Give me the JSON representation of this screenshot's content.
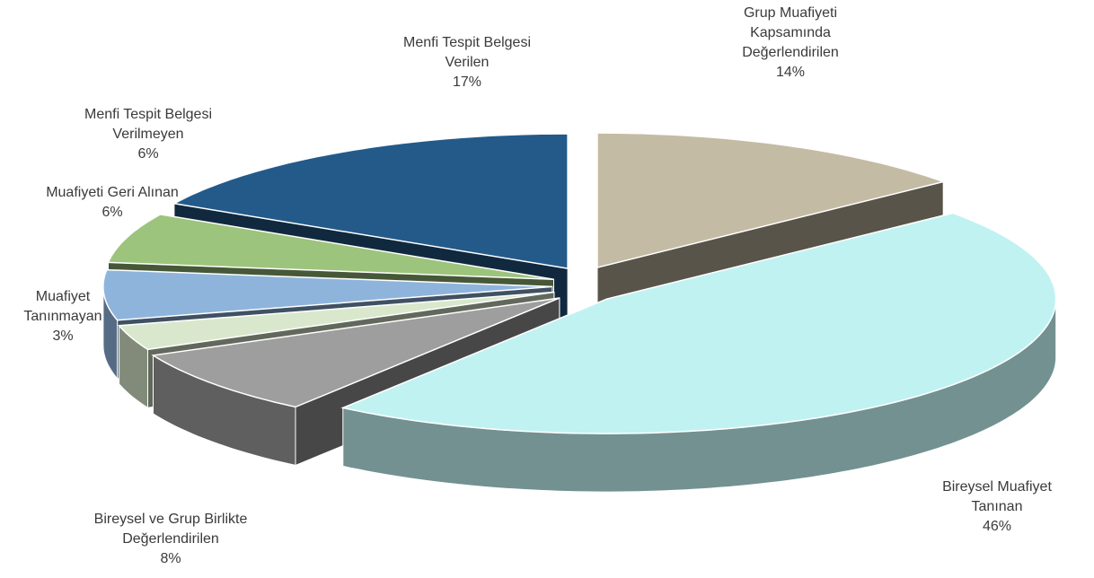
{
  "chart_data": {
    "type": "pie",
    "categories": [
      "Grup Muafiyeti Kapsamında Değerlendirilen",
      "Bireysel Muafiyet Tanınan",
      "Bireysel ve Grup Birlikte Değerlendirilen",
      "Muafiyet Tanınmayan",
      "Muafiyeti Geri Alınan",
      "Menfi Tespit Belgesi Verilmeyen",
      "Menfi Tespit Belgesi Verilen"
    ],
    "values": [
      14,
      46,
      8,
      3,
      6,
      6,
      17
    ],
    "value_labels": [
      "14%",
      "46%",
      "8%",
      "3%",
      "6%",
      "6%",
      "17%"
    ],
    "colors": [
      "#c4bba4",
      "#c0f2f2",
      "#9e9e9e",
      "#d9e8cc",
      "#8fb4dc",
      "#9cc47c",
      "#235a8a"
    ]
  }
}
